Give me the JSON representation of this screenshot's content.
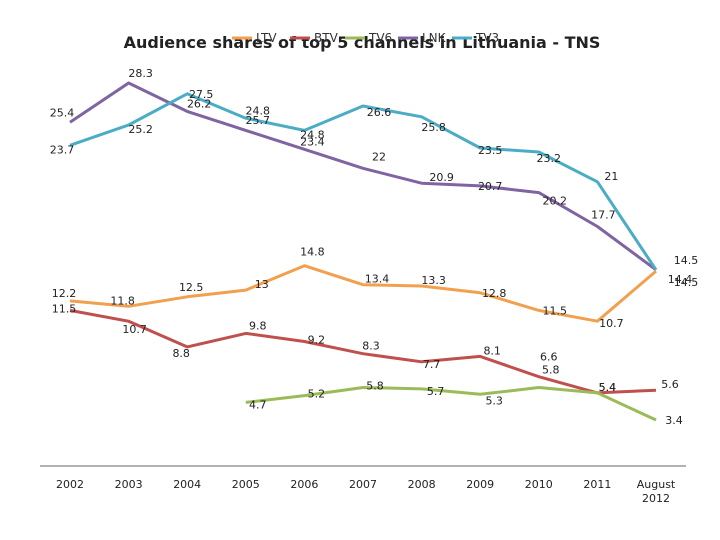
{
  "chart_data": {
    "type": "line",
    "title": "Audience shares of top 5 channels in Lithuania - TNS",
    "xlabel": "",
    "ylabel": "",
    "categories": [
      "2002",
      "2003",
      "2004",
      "2005",
      "2006",
      "2007",
      "2008",
      "2009",
      "2010",
      "2011",
      "August\n2012"
    ],
    "ylim": [
      0,
      30
    ],
    "grid": false,
    "legend_position": "top",
    "series": [
      {
        "name": "LTV",
        "color": "#F2A04E",
        "values": [
          12.2,
          11.8,
          12.5,
          13,
          14.8,
          13.4,
          13.3,
          12.8,
          11.5,
          10.7,
          14.4
        ]
      },
      {
        "name": "BTV",
        "color": "#C0504D",
        "values": [
          11.5,
          10.7,
          8.8,
          9.8,
          9.2,
          8.3,
          7.7,
          8.1,
          6.6,
          5.4,
          5.6
        ]
      },
      {
        "name": "TV6",
        "color": "#9BBB59",
        "values": [
          null,
          null,
          null,
          4.7,
          5.2,
          5.8,
          5.7,
          5.3,
          5.8,
          5.4,
          3.4
        ]
      },
      {
        "name": "LNK",
        "color": "#8064A2",
        "values": [
          25.4,
          28.3,
          26.2,
          24.8,
          23.4,
          22,
          20.9,
          20.7,
          20.2,
          17.7,
          14.5
        ]
      },
      {
        "name": "TV3",
        "color": "#4BACC6",
        "values": [
          23.7,
          25.2,
          27.5,
          25.7,
          24.8,
          26.6,
          25.8,
          23.5,
          23.2,
          21,
          14.5
        ]
      }
    ]
  }
}
